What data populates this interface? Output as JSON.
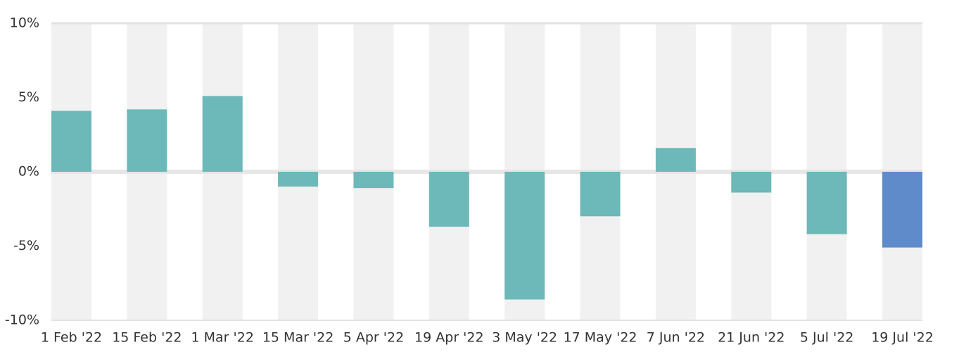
{
  "chart_data": {
    "type": "bar",
    "categories": [
      "1 Feb '22",
      "15 Feb '22",
      "1 Mar '22",
      "15 Mar '22",
      "5 Apr '22",
      "19 Apr '22",
      "3 May '22",
      "17 May '22",
      "7 Jun '22",
      "21 Jun '22",
      "5 Jul '22",
      "19 Jul '22"
    ],
    "values": [
      4.1,
      4.2,
      5.1,
      -1.0,
      -1.1,
      -3.7,
      -8.6,
      -3.0,
      1.6,
      -1.4,
      -4.2,
      -5.1
    ],
    "colors": [
      "#6db8b9",
      "#6db8b9",
      "#6db8b9",
      "#6db8b9",
      "#6db8b9",
      "#6db8b9",
      "#6db8b9",
      "#6db8b9",
      "#6db8b9",
      "#6db8b9",
      "#6db8b9",
      "#5f8bcb"
    ],
    "ylim": [
      -10,
      10
    ],
    "yticks": [
      {
        "value": 10,
        "label": "10%"
      },
      {
        "value": 5,
        "label": "5%"
      },
      {
        "value": 0,
        "label": "0%"
      },
      {
        "value": -5,
        "label": "-5%"
      },
      {
        "value": -10,
        "label": "-10%"
      }
    ]
  }
}
